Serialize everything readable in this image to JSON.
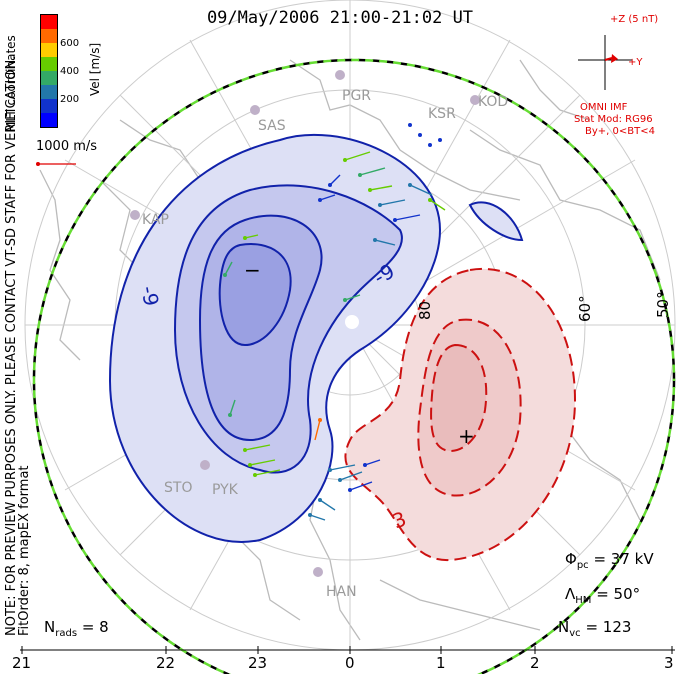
{
  "title": "09/May/2006 21:00-21:02 UT",
  "colorbar": {
    "label": "Vel [m/s]",
    "ticks": [
      "600",
      "400",
      "200"
    ],
    "colors": [
      "#ff0000",
      "#ff6a00",
      "#ffcc00",
      "#66cc00",
      "#33aa66",
      "#2277aa",
      "#1133cc",
      "#0000ff"
    ]
  },
  "coord_label": "MLT coordinates",
  "vector_scale": "1000 m/s",
  "side_notes": [
    "NOTE: FOR PREVIEW PURPOSES ONLY. PLEASE CONTACT VT-SD STAFF FOR VERIFICATION.",
    "FitOrder: 8, mapEX format"
  ],
  "imf": {
    "z_label": "+Z (5 nT)",
    "y_label": "+Y",
    "source": "OMNI IMF",
    "model": "Stat Mod: RG96",
    "condition": "By+, 0<BT<4"
  },
  "stations": [
    "PGR",
    "KOD",
    "SAS",
    "KSR",
    "KAP",
    "STO",
    "PYK",
    "HAN"
  ],
  "latitude_labels": [
    "80",
    "60°",
    "50°"
  ],
  "contour_labels": [
    "-9",
    "-9",
    "3"
  ],
  "extrema": {
    "min": "−",
    "max": "+"
  },
  "mlt_axis": [
    "21",
    "22",
    "23",
    "0",
    "1",
    "2",
    "3"
  ],
  "stats": {
    "phi_label": "Φ",
    "phi_sub": "pc",
    "phi_value": "= 37 kV",
    "lambda_label": "Λ",
    "lambda_sub": "HM",
    "lambda_value": "= 50°",
    "nvc_label": "N",
    "nvc_sub": "vc",
    "nvc_value": "= 123",
    "nrads_label": "N",
    "nrads_sub": "rads",
    "nrads_value": "= 8"
  }
}
